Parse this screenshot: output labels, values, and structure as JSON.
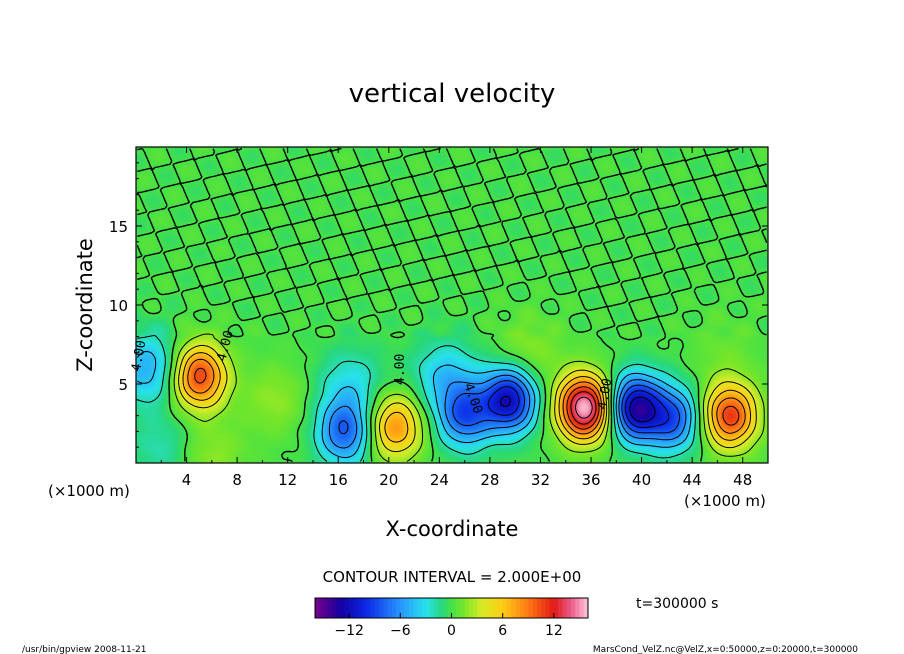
{
  "chart_data": {
    "type": "heatmap",
    "title": "vertical velocity",
    "xlabel": "X-coordinate",
    "ylabel": "Z-coordinate",
    "xunit": "(×1000 m)",
    "yunit": "(×1000 m)",
    "xlim": [
      0,
      50
    ],
    "ylim": [
      0,
      20
    ],
    "xticks": [
      4,
      8,
      12,
      16,
      20,
      24,
      28,
      32,
      36,
      40,
      44,
      48
    ],
    "yticks": [
      5,
      10,
      15
    ],
    "contour_interval_label": "CONTOUR INTERVAL = 2.000E+00",
    "contour_labels": [
      "4.00",
      "4.00",
      "4.00",
      "4.00",
      "4.00"
    ],
    "time_label": "t=300000 s",
    "colorbar": {
      "min": -16,
      "max": 16,
      "ticks": [
        -12,
        -6,
        0,
        6,
        12
      ]
    },
    "extrema": [
      {
        "x": 5,
        "z": 5.5,
        "value": 11
      },
      {
        "x": 16.5,
        "z": 2,
        "value": -8
      },
      {
        "x": 20.5,
        "z": 2.3,
        "value": 8
      },
      {
        "x": 26,
        "z": 3,
        "value": -8
      },
      {
        "x": 29.5,
        "z": 4,
        "value": -12
      },
      {
        "x": 35.5,
        "z": 3.5,
        "value": 16
      },
      {
        "x": 39.5,
        "z": 3.5,
        "value": -13
      },
      {
        "x": 42.5,
        "z": 2.8,
        "value": -8
      },
      {
        "x": 47,
        "z": 3,
        "value": 11
      },
      {
        "x": 1,
        "z": 6,
        "value": -5
      },
      {
        "x": 11,
        "z": 4,
        "value": 2
      },
      {
        "x": 17,
        "z": 5,
        "value": -3
      },
      {
        "x": 24.5,
        "z": 5.5,
        "value": -4
      },
      {
        "x": 31,
        "z": 7,
        "value": 2
      },
      {
        "x": 46.5,
        "z": 7,
        "value": 1
      },
      {
        "x": 6,
        "z": 0.5,
        "value": 2
      },
      {
        "x": 2,
        "z": 1,
        "value": -2
      }
    ]
  },
  "footer": {
    "left": "/usr/bin/gpview  2008-11-21",
    "right": "MarsCond_VelZ.nc@VelZ,x=0:50000,z=0:20000,t=300000"
  }
}
